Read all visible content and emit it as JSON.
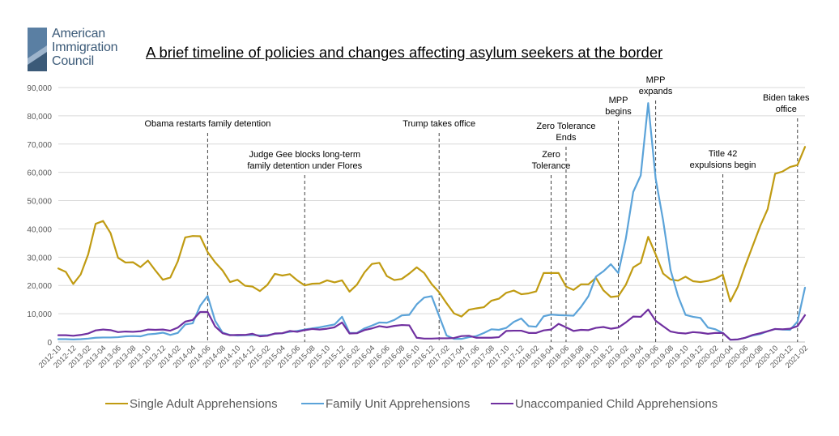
{
  "logo": {
    "line1": "American",
    "line2": "Immigration",
    "line3": "Council"
  },
  "title": "A brief timeline of policies and changes affecting asylum seekers at the border",
  "colors": {
    "single_adult": "#C09B12",
    "family_unit": "#5BA3D9",
    "unaccompanied_child": "#7030A0",
    "axis": "#595959",
    "grid": "#D9D9D9"
  },
  "chart_data": {
    "type": "line",
    "title": "A brief timeline of policies and changes affecting asylum seekers at the border",
    "xlabel": "",
    "ylabel": "",
    "ylim": [
      0,
      90000
    ],
    "yticks": [
      0,
      10000,
      20000,
      30000,
      40000,
      50000,
      60000,
      70000,
      80000,
      90000
    ],
    "ytick_labels": [
      "0",
      "10,000",
      "20,000",
      "30,000",
      "40,000",
      "50,000",
      "60,000",
      "70,000",
      "80,000",
      "90,000"
    ],
    "grid": "horizontal",
    "legend_position": "bottom",
    "x": [
      "2012-10",
      "2012-11",
      "2012-12",
      "2013-01",
      "2013-02",
      "2013-03",
      "2013-04",
      "2013-05",
      "2013-06",
      "2013-07",
      "2013-08",
      "2013-09",
      "2013-10",
      "2013-11",
      "2013-12",
      "2014-01",
      "2014-02",
      "2014-03",
      "2014-04",
      "2014-05",
      "2014-06",
      "2014-07",
      "2014-08",
      "2014-09",
      "2014-10",
      "2014-11",
      "2014-12",
      "2015-01",
      "2015-02",
      "2015-03",
      "2015-04",
      "2015-05",
      "2015-06",
      "2015-07",
      "2015-08",
      "2015-09",
      "2015-10",
      "2015-11",
      "2015-12",
      "2016-01",
      "2016-02",
      "2016-03",
      "2016-04",
      "2016-05",
      "2016-06",
      "2016-07",
      "2016-08",
      "2016-09",
      "2016-10",
      "2016-11",
      "2016-12",
      "2017-01",
      "2017-02",
      "2017-03",
      "2017-04",
      "2017-05",
      "2017-06",
      "2017-07",
      "2017-08",
      "2017-09",
      "2017-10",
      "2017-11",
      "2017-12",
      "2018-01",
      "2018-02",
      "2018-03",
      "2018-04",
      "2018-05",
      "2018-06",
      "2018-07",
      "2018-08",
      "2018-09",
      "2018-10",
      "2018-11",
      "2018-12",
      "2019-01",
      "2019-02",
      "2019-03",
      "2019-04",
      "2019-05",
      "2019-06",
      "2019-07",
      "2019-08",
      "2019-09",
      "2019-10",
      "2019-11",
      "2019-12",
      "2020-01",
      "2020-02",
      "2020-03",
      "2020-04",
      "2020-05",
      "2020-06",
      "2020-07",
      "2020-08",
      "2020-09",
      "2020-10",
      "2020-11",
      "2020-12",
      "2021-01",
      "2021-02"
    ],
    "x_tick_labels": [
      "2012-10",
      "2012-12",
      "2013-02",
      "2013-04",
      "2013-06",
      "2013-08",
      "2013-10",
      "2013-12",
      "2014-02",
      "2014-04",
      "2014-06",
      "2014-08",
      "2014-10",
      "2014-12",
      "2015-02",
      "2015-04",
      "2015-06",
      "2015-08",
      "2015-10",
      "2015-12",
      "2016-02",
      "2016-04",
      "2016-06",
      "2016-08",
      "2016-10",
      "2016-12",
      "2017-02",
      "2017-04",
      "2017-06",
      "2017-08",
      "2017-10",
      "2017-12",
      "2018-02",
      "2018-04",
      "2018-06",
      "2018-08",
      "2018-10",
      "2018-12",
      "2019-02",
      "2019-04",
      "2019-06",
      "2019-08",
      "2019-10",
      "2019-12",
      "2020-02",
      "2020-04",
      "2020-06",
      "2020-08",
      "2020-10",
      "2020-12",
      "2021-02"
    ],
    "series": [
      {
        "name": "Single Adult Apprehensions",
        "color": "#C09B12",
        "values": [
          26000,
          24800,
          20500,
          23900,
          31000,
          41800,
          42800,
          38500,
          29800,
          28100,
          28200,
          26500,
          28800,
          25300,
          22000,
          22800,
          28500,
          37000,
          37500,
          37400,
          31800,
          28200,
          25300,
          21200,
          22000,
          19900,
          19600,
          18000,
          20200,
          24100,
          23500,
          24000,
          21800,
          20000,
          20600,
          20700,
          21800,
          21100,
          21800,
          17800,
          20300,
          24600,
          27600,
          28000,
          23300,
          21900,
          22300,
          24200,
          26400,
          24400,
          20500,
          17600,
          13700,
          10100,
          9000,
          11400,
          11900,
          12300,
          14600,
          15300,
          17400,
          18200,
          16900,
          17200,
          17900,
          24400,
          24400,
          24400,
          19600,
          18400,
          20400,
          20400,
          22700,
          18300,
          15900,
          16200,
          20200,
          26400,
          28000,
          37200,
          31000,
          24200,
          22100,
          21700,
          23100,
          21500,
          21200,
          21600,
          22400,
          23800,
          14300,
          19500,
          27000,
          34000,
          41000,
          47000,
          59500,
          60300,
          61900,
          62600,
          69000
        ]
      },
      {
        "name": "Family Unit Apprehensions",
        "color": "#5BA3D9",
        "values": [
          1000,
          1000,
          900,
          1000,
          1200,
          1500,
          1600,
          1600,
          1700,
          2000,
          2100,
          2000,
          2700,
          2900,
          3300,
          2500,
          3200,
          6200,
          6600,
          12800,
          16300,
          7500,
          3300,
          2500,
          2300,
          2400,
          2500,
          2300,
          2400,
          2900,
          3100,
          3600,
          3900,
          4400,
          4800,
          5200,
          5700,
          6200,
          8900,
          3200,
          3200,
          4800,
          5800,
          6900,
          6800,
          7800,
          9400,
          9600,
          13300,
          15700,
          16200,
          9200,
          2300,
          1100,
          1100,
          1700,
          2100,
          3200,
          4500,
          4300,
          5000,
          7100,
          8300,
          5600,
          5400,
          9100,
          9700,
          9500,
          9400,
          9300,
          12400,
          16200,
          23100,
          25000,
          27500,
          24400,
          36500,
          53100,
          58900,
          84500,
          57800,
          43000,
          25400,
          16200,
          9600,
          8900,
          8500,
          5100,
          4500,
          3200,
          800,
          900,
          1500,
          2300,
          2800,
          3800,
          4600,
          4400,
          4300,
          7200,
          19200
        ]
      },
      {
        "name": "Unaccompanied Child Apprehensions",
        "color": "#7030A0",
        "values": [
          2400,
          2400,
          2200,
          2500,
          3000,
          4100,
          4400,
          4200,
          3500,
          3700,
          3600,
          3800,
          4400,
          4300,
          4400,
          4000,
          5100,
          7200,
          7800,
          10600,
          10600,
          5500,
          3100,
          2400,
          2500,
          2500,
          2900,
          2000,
          2200,
          3000,
          3100,
          3900,
          3600,
          4200,
          4600,
          4400,
          4700,
          5200,
          6900,
          3000,
          3100,
          4200,
          4800,
          5600,
          5200,
          5700,
          6000,
          5900,
          1500,
          1200,
          1200,
          1300,
          1300,
          1400,
          2100,
          2200,
          1500,
          1500,
          1500,
          1700,
          3900,
          4000,
          4000,
          3200,
          3200,
          4100,
          4400,
          6400,
          5200,
          3900,
          4300,
          4200,
          5000,
          5300,
          4700,
          5100,
          6900,
          9000,
          8900,
          11500,
          7500,
          5600,
          3700,
          3200,
          3000,
          3500,
          3300,
          2900,
          3200,
          3200,
          800,
          900,
          1500,
          2500,
          3100,
          3800,
          4600,
          4500,
          4700,
          5600,
          9500
        ]
      }
    ],
    "annotations": [
      {
        "x": "2014-06",
        "label_lines": [
          "Obama restarts family detention"
        ]
      },
      {
        "x": "2015-07",
        "label_lines": [
          "Judge Gee blocks long-term",
          "family detention under Flores"
        ]
      },
      {
        "x": "2017-01",
        "label_lines": [
          "Trump takes office"
        ]
      },
      {
        "x": "2018-04",
        "label_lines": [
          "Zero",
          "Tolerance"
        ]
      },
      {
        "x": "2018-06",
        "label_lines": [
          "Zero Tolerance",
          "Ends"
        ]
      },
      {
        "x": "2019-01",
        "label_lines": [
          "MPP",
          "begins"
        ]
      },
      {
        "x": "2019-06",
        "label_lines": [
          "MPP",
          "expands"
        ]
      },
      {
        "x": "2020-03",
        "label_lines": [
          "Title 42",
          "expulsions begin"
        ]
      },
      {
        "x": "2021-01",
        "label_lines": [
          "Biden takes",
          "office"
        ]
      }
    ]
  }
}
